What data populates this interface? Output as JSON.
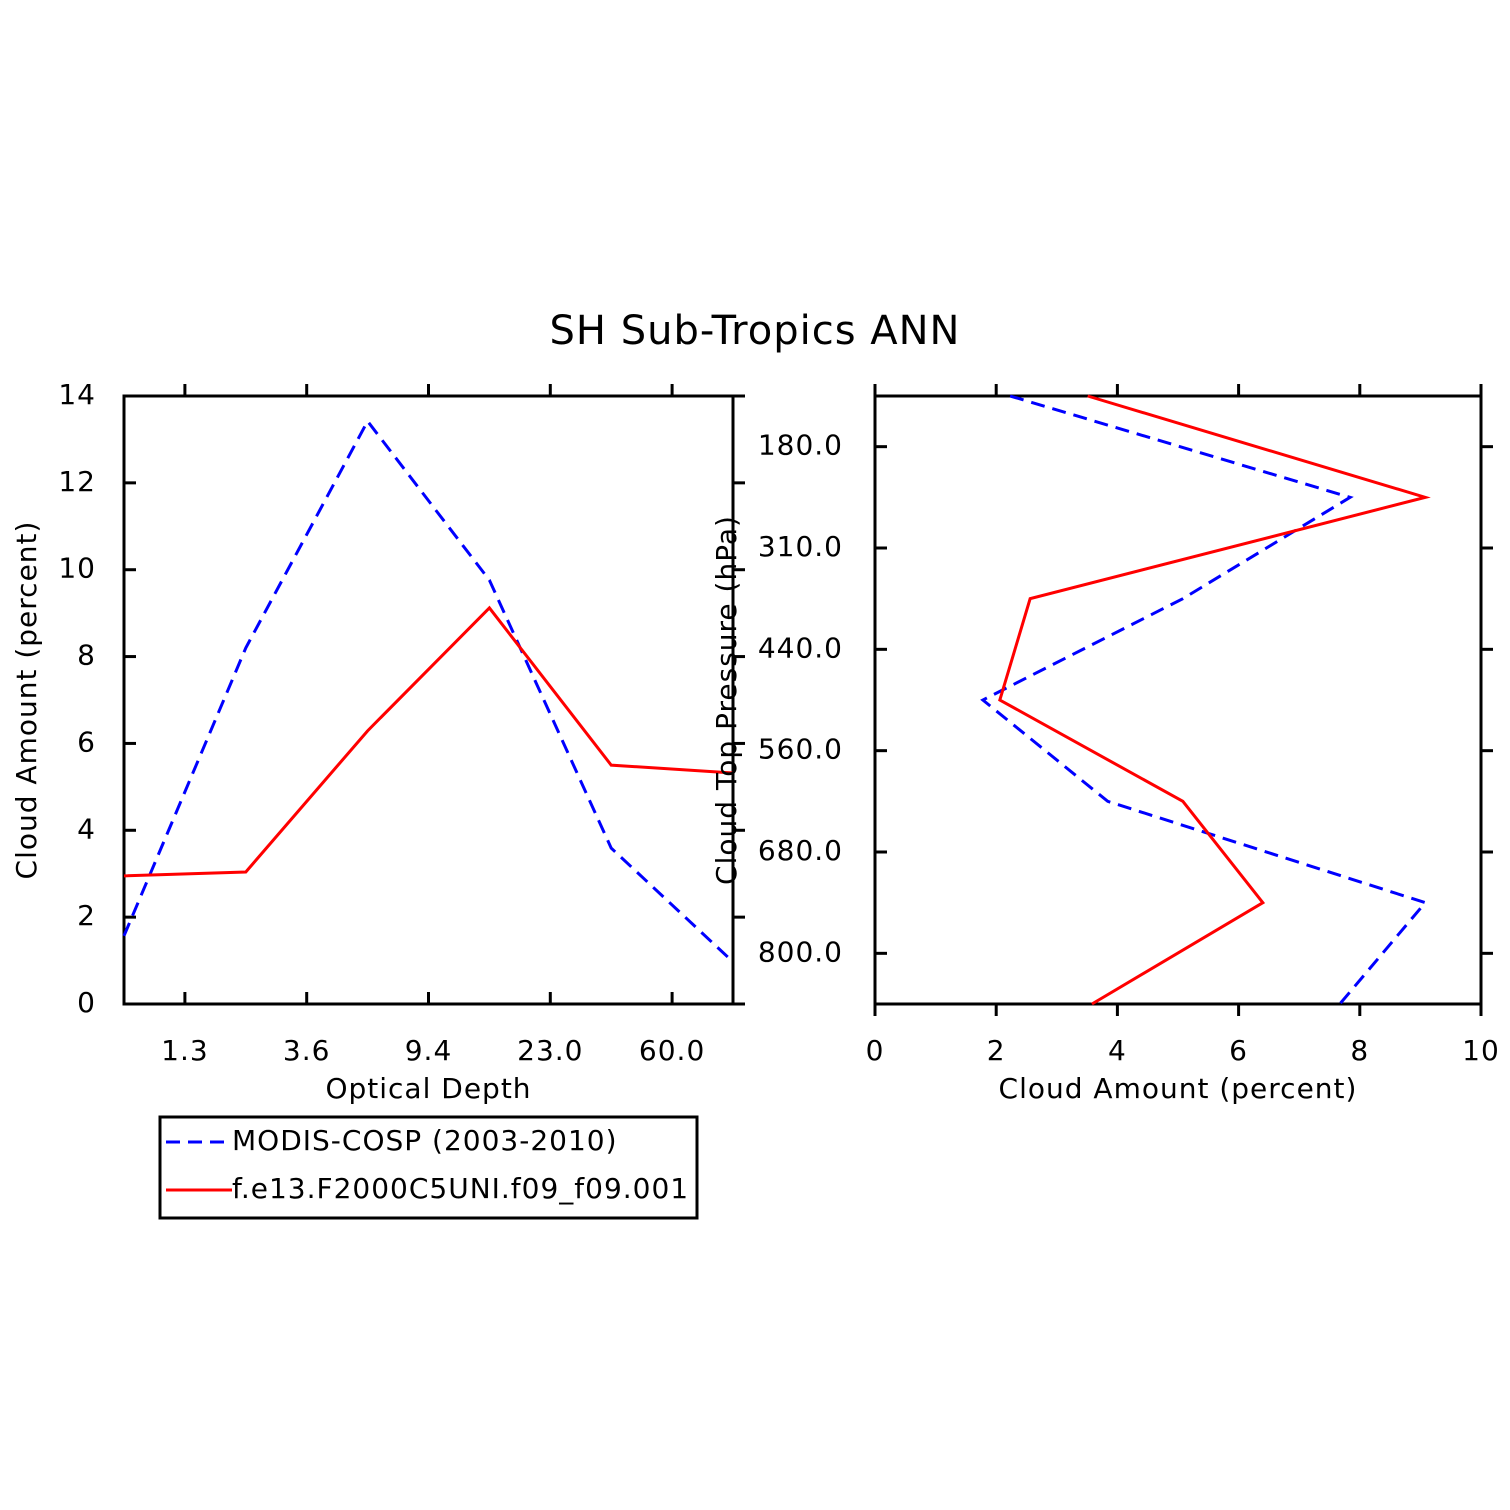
{
  "title": "SH Sub-Tropics ANN",
  "chart_data": [
    {
      "type": "line",
      "orientation": "vertical",
      "xlabel": "Optical Depth",
      "ylabel": "Cloud Amount (percent)",
      "categories": [
        null,
        null,
        null,
        null,
        null,
        null
      ],
      "xticks": [
        "1.3",
        "3.6",
        "9.4",
        "23.0",
        "60.0"
      ],
      "ylim": [
        0,
        14
      ],
      "yticks": [
        0,
        2,
        4,
        6,
        8,
        10,
        12,
        14
      ],
      "series": [
        {
          "name": "MODIS-COSP (2003-2010)",
          "color": "#0000ff",
          "dashed": true,
          "values": [
            1.57,
            8.2,
            13.42,
            9.76,
            3.59,
            0.97
          ]
        },
        {
          "name": "f.e13.F2000C5UNI.f09_f09.001",
          "color": "#ff0000",
          "dashed": false,
          "values": [
            2.95,
            3.04,
            6.29,
            9.12,
            5.5,
            5.32
          ]
        }
      ]
    },
    {
      "type": "line",
      "orientation": "horizontal",
      "xlabel": "Cloud Amount (percent)",
      "ylabel": "Cloud Top Pressure (hPa)",
      "categories": [
        null,
        null,
        null,
        null,
        null,
        null,
        null
      ],
      "yticks": [
        "180.0",
        "310.0",
        "440.0",
        "560.0",
        "680.0",
        "800.0"
      ],
      "xlim": [
        0,
        10
      ],
      "xticks": [
        0,
        2,
        4,
        6,
        8,
        10
      ],
      "series": [
        {
          "color": "#0000ff",
          "dashed": true,
          "values": [
            2.23,
            7.84,
            5.08,
            1.78,
            3.84,
            9.08,
            7.67
          ]
        },
        {
          "color": "#ff0000",
          "dashed": false,
          "values": [
            3.51,
            9.08,
            2.56,
            2.06,
            5.08,
            6.4,
            3.58
          ]
        }
      ]
    }
  ]
}
